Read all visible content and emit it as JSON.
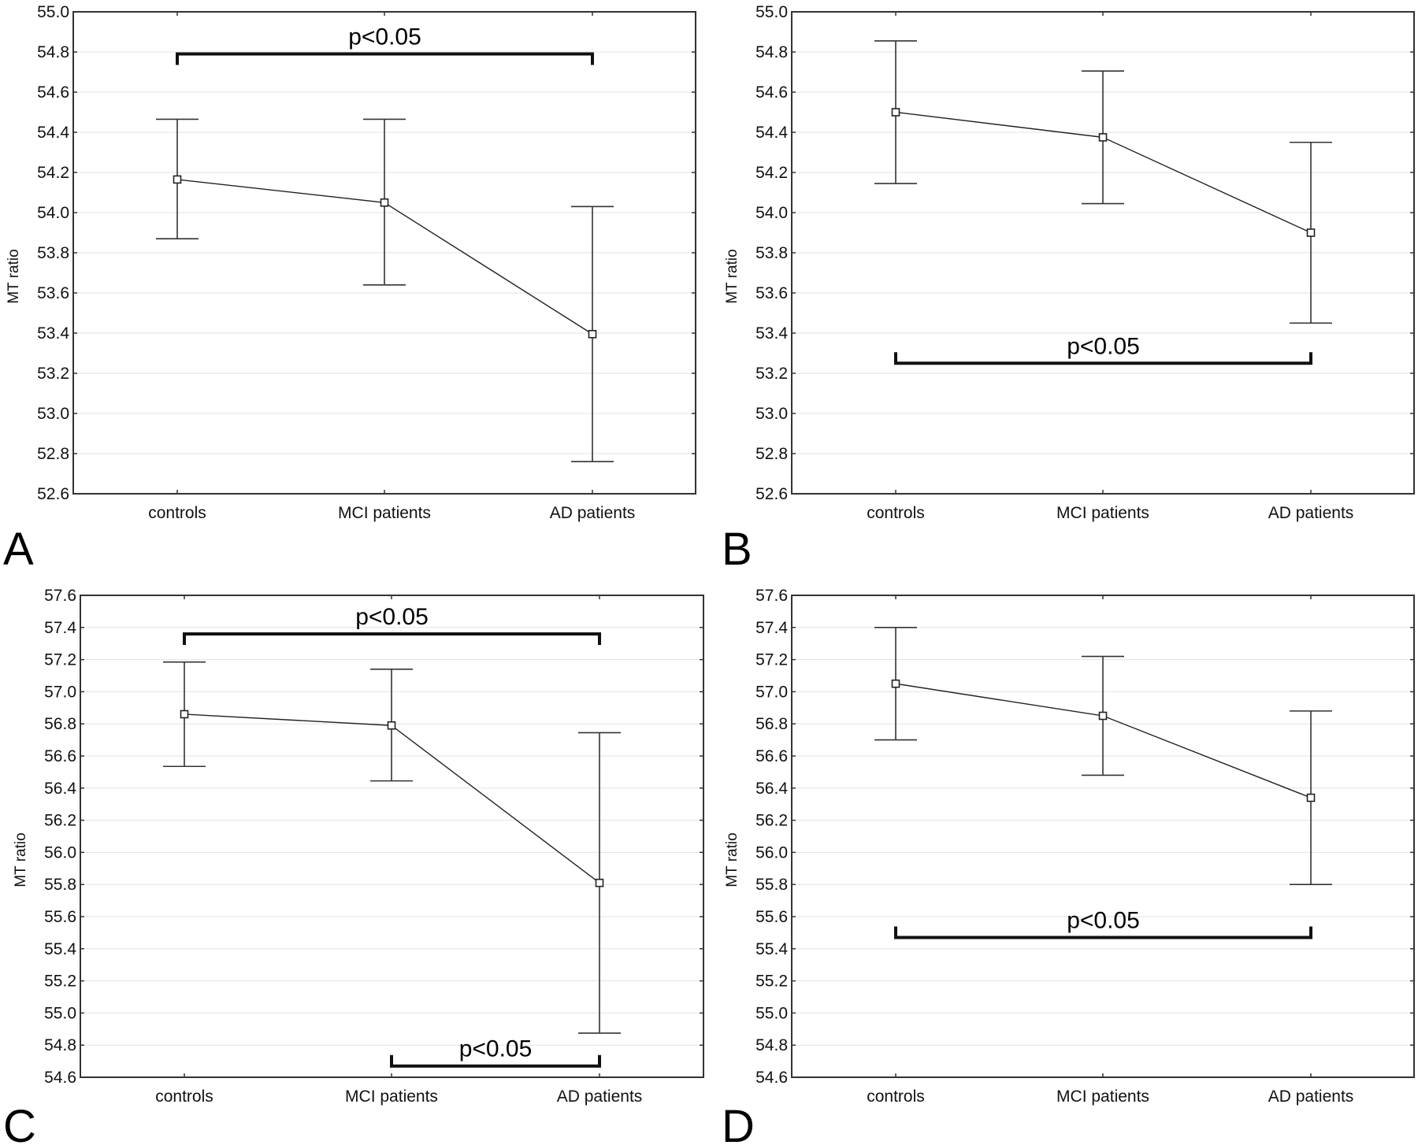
{
  "figure": {
    "categories": [
      "controls",
      "MCI patients",
      "AD patients"
    ],
    "ylabel": "MT ratio"
  },
  "chart_data": [
    {
      "panel": "A",
      "type": "line",
      "categories": [
        "controls",
        "MCI patients",
        "AD patients"
      ],
      "ylabel": "MT ratio",
      "ylim": [
        52.6,
        55.0
      ],
      "yticks": [
        "52.6",
        "52.8",
        "53.0",
        "53.2",
        "53.4",
        "53.6",
        "53.8",
        "54.0",
        "54.2",
        "54.4",
        "54.6",
        "54.8",
        "55.0"
      ],
      "grid": true,
      "series": [
        {
          "name": "mean",
          "values": [
            54.165,
            54.05,
            53.395
          ],
          "lower": [
            53.87,
            53.64,
            52.76
          ],
          "upper": [
            54.465,
            54.465,
            54.03
          ]
        }
      ],
      "annotations": [
        {
          "text": "p<0.05",
          "from": "controls",
          "to": "AD patients",
          "y": 54.79,
          "direction": "down"
        }
      ]
    },
    {
      "panel": "B",
      "type": "line",
      "categories": [
        "controls",
        "MCI patients",
        "AD patients"
      ],
      "ylabel": "MT ratio",
      "ylim": [
        52.6,
        55.0
      ],
      "yticks": [
        "52.6",
        "52.8",
        "53.0",
        "53.2",
        "53.4",
        "53.6",
        "53.8",
        "54.0",
        "54.2",
        "54.4",
        "54.6",
        "54.8",
        "55.0"
      ],
      "grid": true,
      "series": [
        {
          "name": "mean",
          "values": [
            54.5,
            54.375,
            53.9
          ],
          "lower": [
            54.145,
            54.045,
            53.45
          ],
          "upper": [
            54.855,
            54.705,
            54.35
          ]
        }
      ],
      "annotations": [
        {
          "text": "p<0.05",
          "from": "controls",
          "to": "AD patients",
          "y": 53.25,
          "direction": "up"
        }
      ]
    },
    {
      "panel": "C",
      "type": "line",
      "categories": [
        "controls",
        "MCI patients",
        "AD patients"
      ],
      "ylabel": "MT ratio",
      "ylim": [
        54.6,
        57.6
      ],
      "yticks": [
        "54.6",
        "54.8",
        "55.0",
        "55.2",
        "55.4",
        "55.6",
        "55.8",
        "56.0",
        "56.2",
        "56.4",
        "56.6",
        "56.8",
        "57.0",
        "57.2",
        "57.4",
        "57.6"
      ],
      "grid": true,
      "series": [
        {
          "name": "mean",
          "values": [
            56.86,
            56.79,
            55.81
          ],
          "lower": [
            56.535,
            56.445,
            54.875
          ],
          "upper": [
            57.185,
            57.14,
            56.745
          ]
        }
      ],
      "annotations": [
        {
          "text": "p<0.05",
          "from": "controls",
          "to": "AD patients",
          "y": 57.36,
          "direction": "down"
        },
        {
          "text": "p<0.05",
          "from": "MCI patients",
          "to": "AD patients",
          "y": 54.67,
          "direction": "up"
        }
      ]
    },
    {
      "panel": "D",
      "type": "line",
      "categories": [
        "controls",
        "MCI patients",
        "AD patients"
      ],
      "ylabel": "MT ratio",
      "ylim": [
        54.6,
        57.6
      ],
      "yticks": [
        "54.6",
        "54.8",
        "55.0",
        "55.2",
        "55.4",
        "55.6",
        "55.8",
        "56.0",
        "56.2",
        "56.4",
        "56.6",
        "56.8",
        "57.0",
        "57.2",
        "57.4",
        "57.6"
      ],
      "grid": true,
      "series": [
        {
          "name": "mean",
          "values": [
            57.05,
            56.85,
            56.34
          ],
          "lower": [
            56.7,
            56.48,
            55.8
          ],
          "upper": [
            57.4,
            57.22,
            56.88
          ]
        }
      ],
      "annotations": [
        {
          "text": "p<0.05",
          "from": "controls",
          "to": "AD patients",
          "y": 55.47,
          "direction": "up"
        }
      ]
    }
  ]
}
